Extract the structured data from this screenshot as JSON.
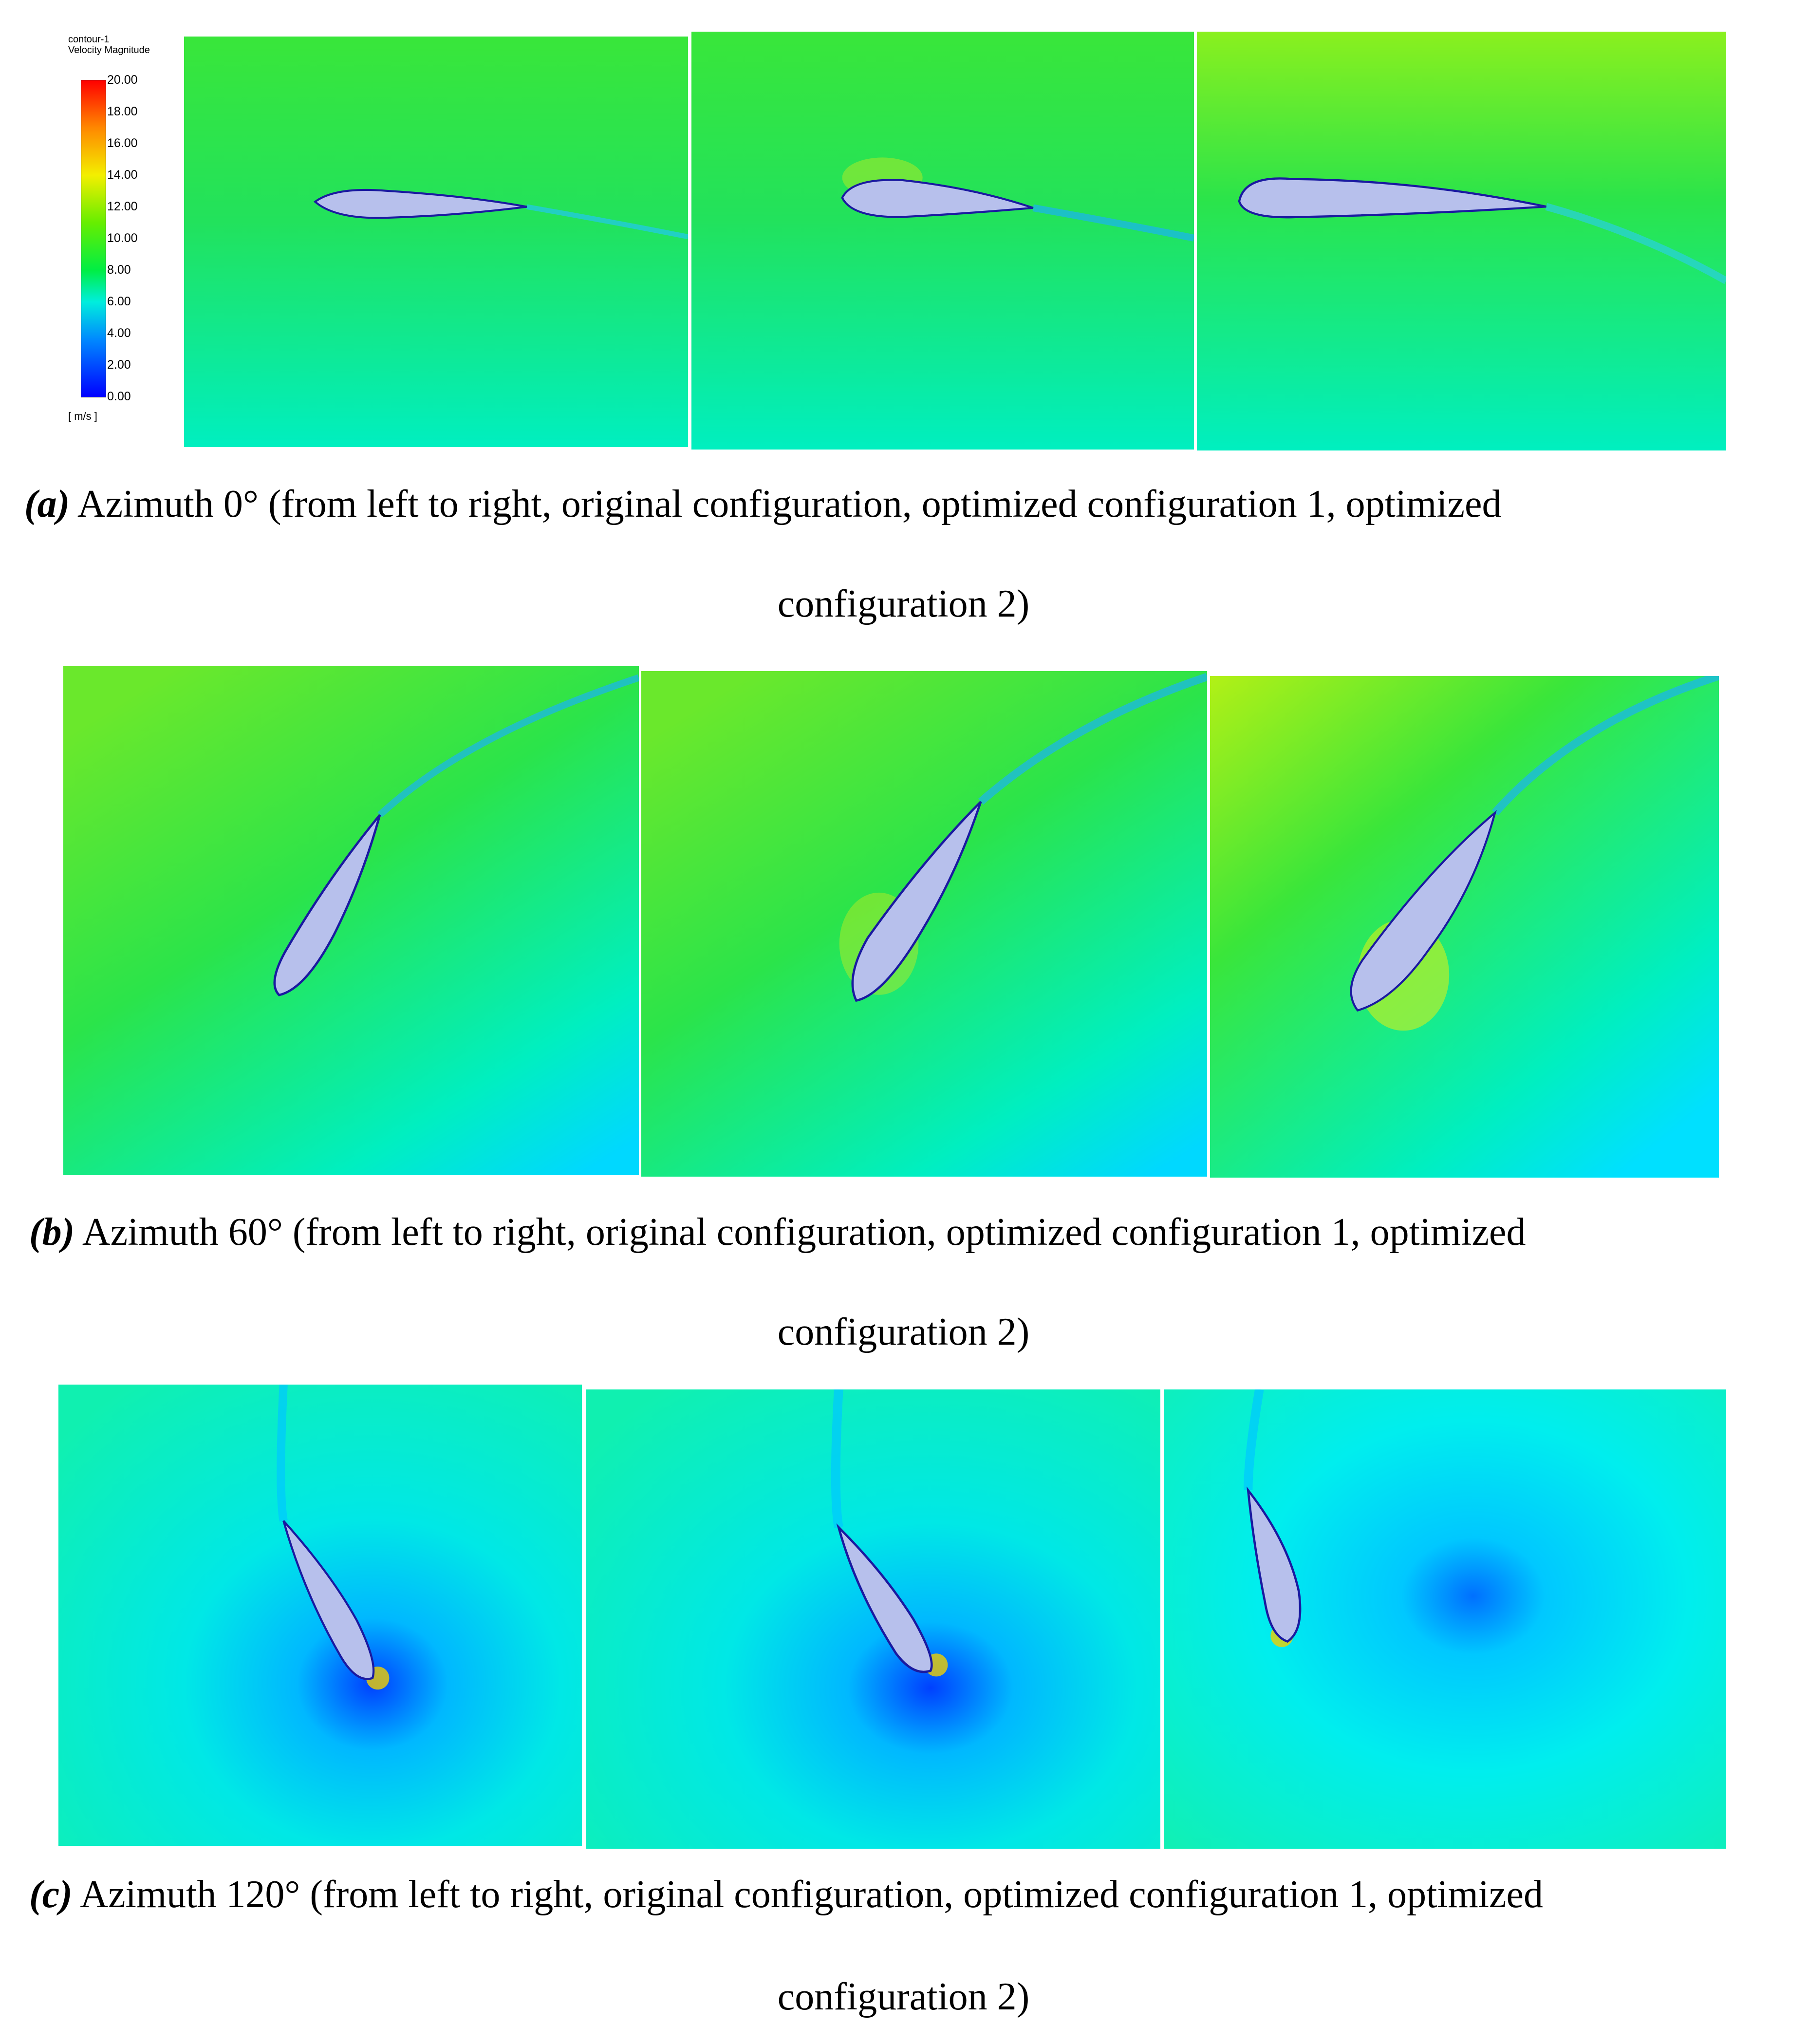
{
  "legend": {
    "title_line1": "contour-1",
    "title_line2": "Velocity Magnitude",
    "ticks": [
      "20.00",
      "18.00",
      "16.00",
      "14.00",
      "12.00",
      "10.00",
      "8.00",
      "6.00",
      "4.00",
      "2.00",
      "0.00"
    ],
    "unit": "[ m/s ]"
  },
  "rows": [
    {
      "tag": "(a)",
      "caption_line1": "Azimuth 0° (from left to right, original configuration, optimized configuration 1, optimized",
      "caption_line2": "configuration 2)"
    },
    {
      "tag": "(b)",
      "caption_line1": "Azimuth 60° (from left to right, original configuration, optimized configuration 1, optimized",
      "caption_line2": "configuration 2)"
    },
    {
      "tag": "(c)",
      "caption_line1": "Azimuth 120° (from left to right, original configuration, optimized configuration 1, optimized",
      "caption_line2": "configuration 2)"
    }
  ],
  "colors": {
    "field_green": "#2fe24a",
    "field_cyan": "#00f0c8",
    "field_lightblue": "#00e6ff",
    "field_yellowgreen": "#a6f21a",
    "airfoil_fill": "#b7c0ec",
    "airfoil_stroke": "#1a1aa0",
    "wake_blue": "#0030ff"
  }
}
